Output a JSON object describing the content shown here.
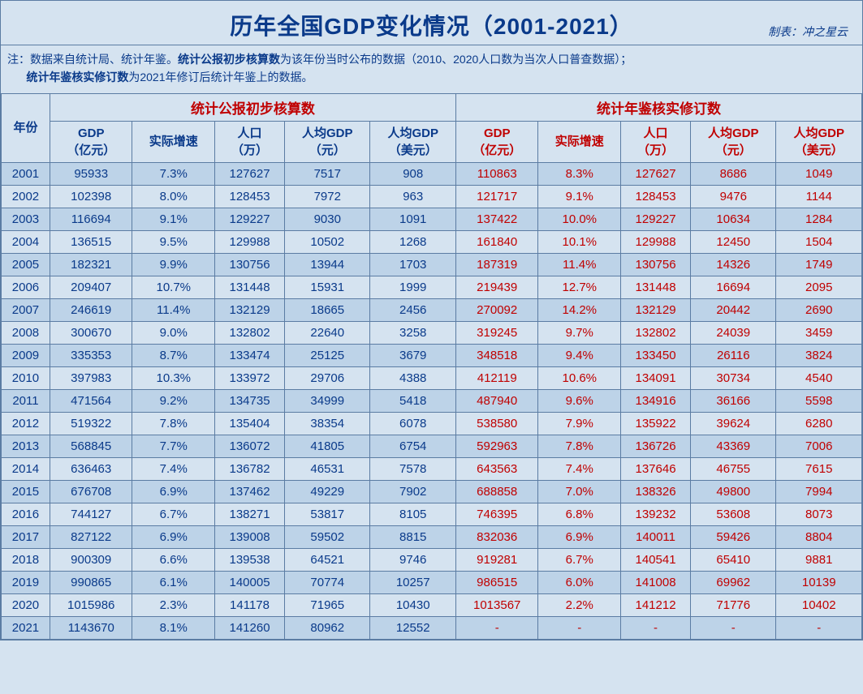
{
  "title": "历年全国GDP变化情况（2001-2021）",
  "credit_label": "制表：冲之星云",
  "note_prefix": "注：数据来自统计局、统计年鉴。",
  "note_bold1": "统计公报初步核算数",
  "note_mid1": "为该年份当时公布的数据（2010、2020人口数为当次人口普查数据）；",
  "note_bold2": "统计年鉴核实修订数",
  "note_mid2": "为2021年修订后统计年鉴上的数据。",
  "headers": {
    "year": "年份",
    "group1": "统计公报初步核算数",
    "group2": "统计年鉴核实修订数",
    "gdp": "GDP\n（亿元）",
    "growth": "实际增速",
    "pop": "人口\n（万）",
    "pcgdp": "人均GDP\n（元）",
    "pcgdp_usd": "人均GDP\n（美元）"
  },
  "colors": {
    "bg_light": "#d5e3f0",
    "bg_dark": "#bdd3e8",
    "border": "#5b7ca3",
    "text_blue": "#0a3a8a",
    "text_red": "#c00000"
  },
  "rows": [
    {
      "year": "2001",
      "a": [
        "95933",
        "7.3%",
        "127627",
        "7517",
        "908"
      ],
      "b": [
        "110863",
        "8.3%",
        "127627",
        "8686",
        "1049"
      ]
    },
    {
      "year": "2002",
      "a": [
        "102398",
        "8.0%",
        "128453",
        "7972",
        "963"
      ],
      "b": [
        "121717",
        "9.1%",
        "128453",
        "9476",
        "1144"
      ]
    },
    {
      "year": "2003",
      "a": [
        "116694",
        "9.1%",
        "129227",
        "9030",
        "1091"
      ],
      "b": [
        "137422",
        "10.0%",
        "129227",
        "10634",
        "1284"
      ]
    },
    {
      "year": "2004",
      "a": [
        "136515",
        "9.5%",
        "129988",
        "10502",
        "1268"
      ],
      "b": [
        "161840",
        "10.1%",
        "129988",
        "12450",
        "1504"
      ]
    },
    {
      "year": "2005",
      "a": [
        "182321",
        "9.9%",
        "130756",
        "13944",
        "1703"
      ],
      "b": [
        "187319",
        "11.4%",
        "130756",
        "14326",
        "1749"
      ]
    },
    {
      "year": "2006",
      "a": [
        "209407",
        "10.7%",
        "131448",
        "15931",
        "1999"
      ],
      "b": [
        "219439",
        "12.7%",
        "131448",
        "16694",
        "2095"
      ]
    },
    {
      "year": "2007",
      "a": [
        "246619",
        "11.4%",
        "132129",
        "18665",
        "2456"
      ],
      "b": [
        "270092",
        "14.2%",
        "132129",
        "20442",
        "2690"
      ]
    },
    {
      "year": "2008",
      "a": [
        "300670",
        "9.0%",
        "132802",
        "22640",
        "3258"
      ],
      "b": [
        "319245",
        "9.7%",
        "132802",
        "24039",
        "3459"
      ]
    },
    {
      "year": "2009",
      "a": [
        "335353",
        "8.7%",
        "133474",
        "25125",
        "3679"
      ],
      "b": [
        "348518",
        "9.4%",
        "133450",
        "26116",
        "3824"
      ]
    },
    {
      "year": "2010",
      "a": [
        "397983",
        "10.3%",
        "133972",
        "29706",
        "4388"
      ],
      "b": [
        "412119",
        "10.6%",
        "134091",
        "30734",
        "4540"
      ]
    },
    {
      "year": "2011",
      "a": [
        "471564",
        "9.2%",
        "134735",
        "34999",
        "5418"
      ],
      "b": [
        "487940",
        "9.6%",
        "134916",
        "36166",
        "5598"
      ]
    },
    {
      "year": "2012",
      "a": [
        "519322",
        "7.8%",
        "135404",
        "38354",
        "6078"
      ],
      "b": [
        "538580",
        "7.9%",
        "135922",
        "39624",
        "6280"
      ]
    },
    {
      "year": "2013",
      "a": [
        "568845",
        "7.7%",
        "136072",
        "41805",
        "6754"
      ],
      "b": [
        "592963",
        "7.8%",
        "136726",
        "43369",
        "7006"
      ]
    },
    {
      "year": "2014",
      "a": [
        "636463",
        "7.4%",
        "136782",
        "46531",
        "7578"
      ],
      "b": [
        "643563",
        "7.4%",
        "137646",
        "46755",
        "7615"
      ]
    },
    {
      "year": "2015",
      "a": [
        "676708",
        "6.9%",
        "137462",
        "49229",
        "7902"
      ],
      "b": [
        "688858",
        "7.0%",
        "138326",
        "49800",
        "7994"
      ]
    },
    {
      "year": "2016",
      "a": [
        "744127",
        "6.7%",
        "138271",
        "53817",
        "8105"
      ],
      "b": [
        "746395",
        "6.8%",
        "139232",
        "53608",
        "8073"
      ]
    },
    {
      "year": "2017",
      "a": [
        "827122",
        "6.9%",
        "139008",
        "59502",
        "8815"
      ],
      "b": [
        "832036",
        "6.9%",
        "140011",
        "59426",
        "8804"
      ]
    },
    {
      "year": "2018",
      "a": [
        "900309",
        "6.6%",
        "139538",
        "64521",
        "9746"
      ],
      "b": [
        "919281",
        "6.7%",
        "140541",
        "65410",
        "9881"
      ]
    },
    {
      "year": "2019",
      "a": [
        "990865",
        "6.1%",
        "140005",
        "70774",
        "10257"
      ],
      "b": [
        "986515",
        "6.0%",
        "141008",
        "69962",
        "10139"
      ]
    },
    {
      "year": "2020",
      "a": [
        "1015986",
        "2.3%",
        "141178",
        "71965",
        "10430"
      ],
      "b": [
        "1013567",
        "2.2%",
        "141212",
        "71776",
        "10402"
      ]
    },
    {
      "year": "2021",
      "a": [
        "1143670",
        "8.1%",
        "141260",
        "80962",
        "12552"
      ],
      "b": [
        "-",
        "-",
        "-",
        "-",
        "-"
      ]
    }
  ]
}
